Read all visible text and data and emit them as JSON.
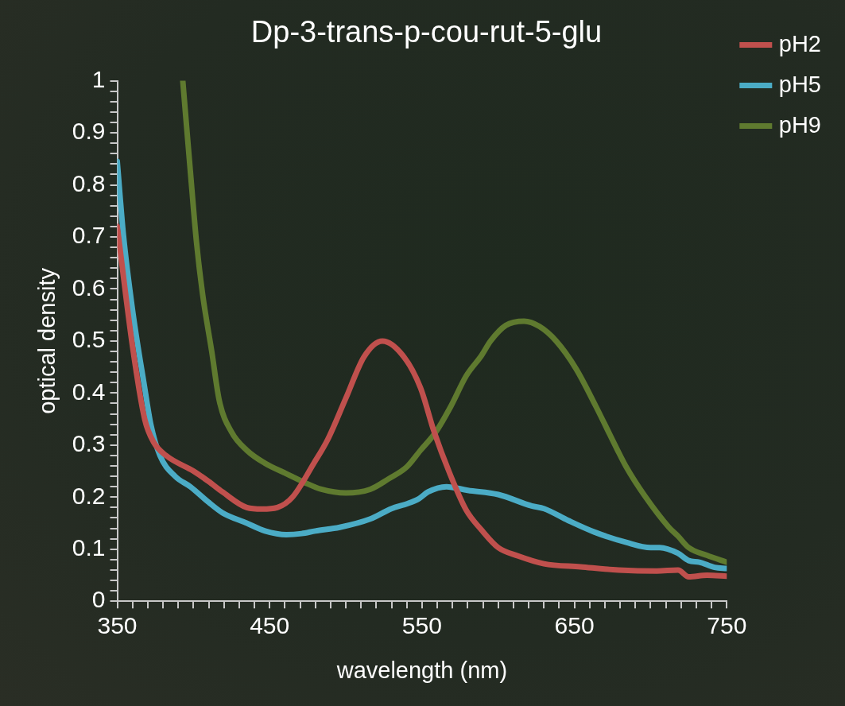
{
  "chart_data": {
    "type": "line",
    "title": "Dp-3-trans-p-cou-rut-5-glu",
    "xlabel": "wavelength (nm)",
    "ylabel": "optical density",
    "xlim": [
      350,
      750
    ],
    "xticks": [
      350,
      {
        "value": 360,
        "label": null
      },
      {
        "value": 370,
        "label": null
      },
      {
        "value": 380,
        "label": null
      },
      {
        "value": 390,
        "label": null
      },
      {
        "value": 400,
        "label": null
      },
      {
        "value": 410,
        "label": null
      },
      {
        "value": 420,
        "label": null
      },
      {
        "value": 430,
        "label": null
      },
      {
        "value": 440,
        "label": null
      },
      450,
      {
        "value": 460,
        "label": null
      },
      {
        "value": 470,
        "label": null
      },
      {
        "value": 480,
        "label": null
      },
      {
        "value": 490,
        "label": null
      },
      {
        "value": 500,
        "label": null
      },
      {
        "value": 510,
        "label": null
      },
      {
        "value": 520,
        "label": null
      },
      {
        "value": 530,
        "label": null
      },
      {
        "value": 540,
        "label": null
      },
      550,
      {
        "value": 560,
        "label": null
      },
      {
        "value": 570,
        "label": null
      },
      {
        "value": 580,
        "label": null
      },
      {
        "value": 590,
        "label": null
      },
      {
        "value": 600,
        "label": null
      },
      {
        "value": 610,
        "label": null
      },
      {
        "value": 620,
        "label": null
      },
      {
        "value": 630,
        "label": null
      },
      {
        "value": 640,
        "label": null
      },
      650,
      {
        "value": 660,
        "label": null
      },
      {
        "value": 670,
        "label": null
      },
      {
        "value": 680,
        "label": null
      },
      {
        "value": 690,
        "label": null
      },
      {
        "value": 700,
        "label": null
      },
      {
        "value": 710,
        "label": null
      },
      {
        "value": 720,
        "label": null
      },
      {
        "value": 730,
        "label": null
      },
      {
        "value": 740,
        "label": null
      },
      750
    ],
    "ylim": [
      0,
      1
    ],
    "yticks": [
      0,
      {
        "value": 0.02,
        "label": null
      },
      {
        "value": 0.04,
        "label": null
      },
      {
        "value": 0.06,
        "label": null
      },
      {
        "value": 0.08,
        "label": null
      },
      0.1,
      {
        "value": 0.12,
        "label": null
      },
      {
        "value": 0.14,
        "label": null
      },
      {
        "value": 0.16,
        "label": null
      },
      {
        "value": 0.18,
        "label": null
      },
      0.2,
      {
        "value": 0.22,
        "label": null
      },
      {
        "value": 0.24,
        "label": null
      },
      {
        "value": 0.26,
        "label": null
      },
      {
        "value": 0.28,
        "label": null
      },
      0.3,
      {
        "value": 0.32,
        "label": null
      },
      {
        "value": 0.34,
        "label": null
      },
      {
        "value": 0.36,
        "label": null
      },
      {
        "value": 0.38,
        "label": null
      },
      0.4,
      {
        "value": 0.42,
        "label": null
      },
      {
        "value": 0.44,
        "label": null
      },
      {
        "value": 0.46,
        "label": null
      },
      {
        "value": 0.48,
        "label": null
      },
      0.5,
      {
        "value": 0.52,
        "label": null
      },
      {
        "value": 0.54,
        "label": null
      },
      {
        "value": 0.56,
        "label": null
      },
      {
        "value": 0.58,
        "label": null
      },
      0.6,
      {
        "value": 0.62,
        "label": null
      },
      {
        "value": 0.64,
        "label": null
      },
      {
        "value": 0.66,
        "label": null
      },
      {
        "value": 0.68,
        "label": null
      },
      0.7,
      {
        "value": 0.72,
        "label": null
      },
      {
        "value": 0.74,
        "label": null
      },
      {
        "value": 0.76,
        "label": null
      },
      {
        "value": 0.78,
        "label": null
      },
      0.8,
      {
        "value": 0.82,
        "label": null
      },
      {
        "value": 0.84,
        "label": null
      },
      {
        "value": 0.86,
        "label": null
      },
      {
        "value": 0.88,
        "label": null
      },
      0.9,
      {
        "value": 0.92,
        "label": null
      },
      {
        "value": 0.94,
        "label": null
      },
      {
        "value": 0.96,
        "label": null
      },
      {
        "value": 0.98,
        "label": null
      },
      1
    ],
    "legend": "top right",
    "marker": "none",
    "line_style": "solid",
    "series": [
      {
        "name": "pH2",
        "color": "#c0504d",
        "x": [
          350,
          360,
          368,
          374,
          382,
          400,
          410,
          419,
          435,
          445,
          455,
          465,
          479,
          488,
          500,
          512,
          524,
          538,
          549,
          558,
          568,
          579,
          589,
          600,
          613,
          630,
          654,
          679,
          704,
          718,
          725,
          737,
          750
        ],
        "values": [
          0.72,
          0.49,
          0.35,
          0.305,
          0.28,
          0.25,
          0.23,
          0.21,
          0.18,
          0.177,
          0.18,
          0.2,
          0.265,
          0.31,
          0.39,
          0.47,
          0.5,
          0.47,
          0.41,
          0.325,
          0.247,
          0.175,
          0.137,
          0.103,
          0.087,
          0.072,
          0.066,
          0.06,
          0.058,
          0.06,
          0.047,
          0.05,
          0.048
        ]
      },
      {
        "name": "pH5",
        "color": "#4bacc6",
        "x": [
          350,
          354,
          360,
          368,
          372,
          378,
          388,
          398,
          410,
          419,
          435,
          447,
          461,
          471,
          480,
          496,
          516,
          530,
          540,
          548,
          554,
          566,
          580,
          600,
          622,
          630,
          646,
          663,
          684,
          700,
          706,
          718,
          725,
          732,
          742,
          750
        ],
        "values": [
          0.845,
          0.705,
          0.56,
          0.41,
          0.34,
          0.28,
          0.24,
          0.22,
          0.19,
          0.17,
          0.15,
          0.135,
          0.128,
          0.13,
          0.135,
          0.142,
          0.158,
          0.178,
          0.187,
          0.197,
          0.21,
          0.22,
          0.213,
          0.205,
          0.183,
          0.178,
          0.155,
          0.133,
          0.113,
          0.103,
          0.103,
          0.092,
          0.078,
          0.075,
          0.065,
          0.063
        ]
      },
      {
        "name": "pH9",
        "color": "#5f7a2f",
        "x": [
          393,
          398,
          402,
          406,
          412,
          417,
          425,
          435,
          447,
          461,
          473,
          484,
          500,
          516,
          528,
          540,
          549,
          559,
          569,
          579,
          589,
          595,
          605,
          617,
          627,
          638,
          651,
          664,
          678,
          684,
          696,
          712,
          718,
          725,
          737,
          750
        ],
        "values": [
          1.0,
          0.825,
          0.69,
          0.59,
          0.48,
          0.385,
          0.325,
          0.29,
          0.265,
          0.245,
          0.228,
          0.215,
          0.208,
          0.215,
          0.235,
          0.258,
          0.29,
          0.325,
          0.375,
          0.433,
          0.472,
          0.5,
          0.53,
          0.538,
          0.528,
          0.5,
          0.447,
          0.375,
          0.292,
          0.258,
          0.203,
          0.142,
          0.125,
          0.103,
          0.088,
          0.075
        ]
      }
    ]
  }
}
